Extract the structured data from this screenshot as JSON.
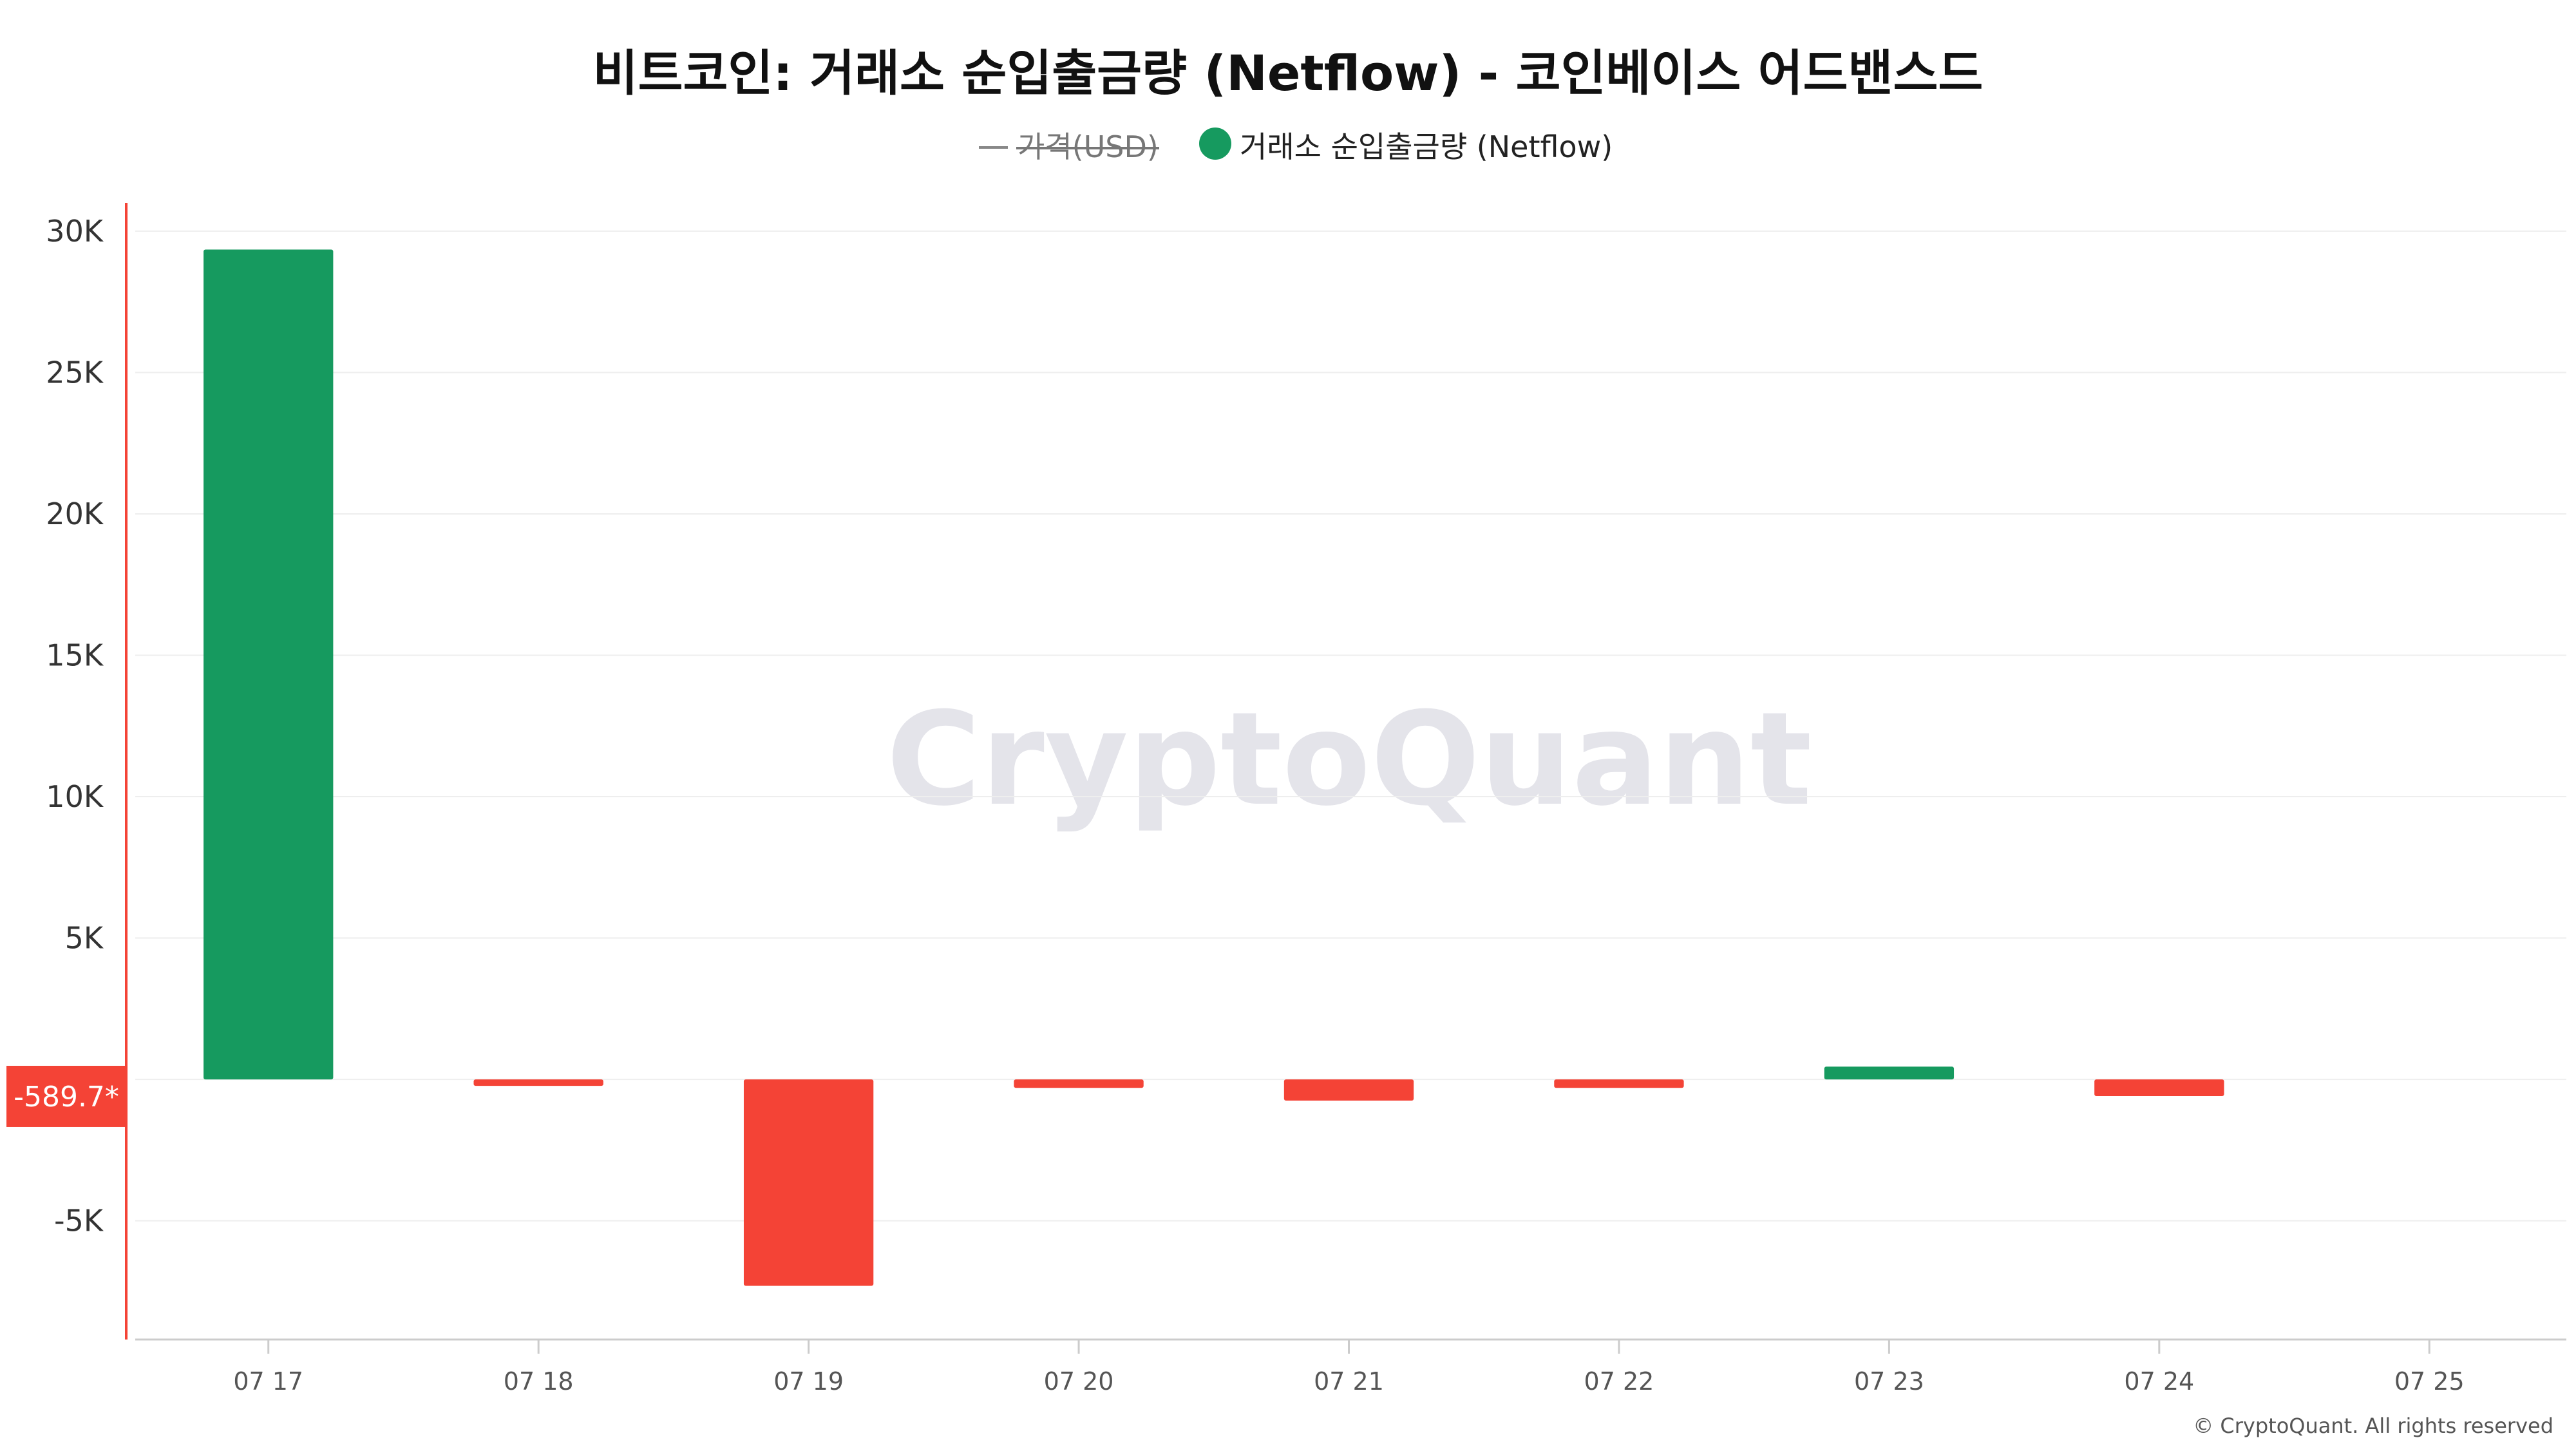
{
  "chart_data": {
    "type": "bar",
    "title": "비트코인: 거래소 순입출금량 (Netflow) - 코인베이스 어드밴스드",
    "legend": [
      {
        "name": "가격(USD)",
        "marker": "line",
        "color": "#888888",
        "disabled": true
      },
      {
        "name": "거래소 순입출금량 (Netflow)",
        "marker": "circle",
        "color": "#169a5f",
        "disabled": false
      }
    ],
    "legend_placement": "top-center",
    "categories": [
      "07 17",
      "07 18",
      "07 19",
      "07 20",
      "07 21",
      "07 22",
      "07 23",
      "07 24",
      "07 25"
    ],
    "series": [
      {
        "name": "거래소 순입출금량 (Netflow)",
        "values": [
          29350,
          -230,
          -7300,
          -300,
          -750,
          -300,
          450,
          -590,
          null
        ]
      }
    ],
    "positive_color": "#169a5f",
    "negative_color": "#f44336",
    "ylim": [
      -9200,
      31000
    ],
    "yticks": [
      30000,
      25000,
      20000,
      15000,
      10000,
      5000,
      -5000
    ],
    "ytick_labels": [
      "30K",
      "25K",
      "20K",
      "15K",
      "10K",
      "5K",
      "-5K"
    ],
    "grid": true,
    "current_value_label": "-589.7*",
    "current_value": -589.7,
    "current_label_color": "#f44336",
    "watermark": "CryptoQuant",
    "copyright": "© CryptoQuant. All rights reserved"
  }
}
